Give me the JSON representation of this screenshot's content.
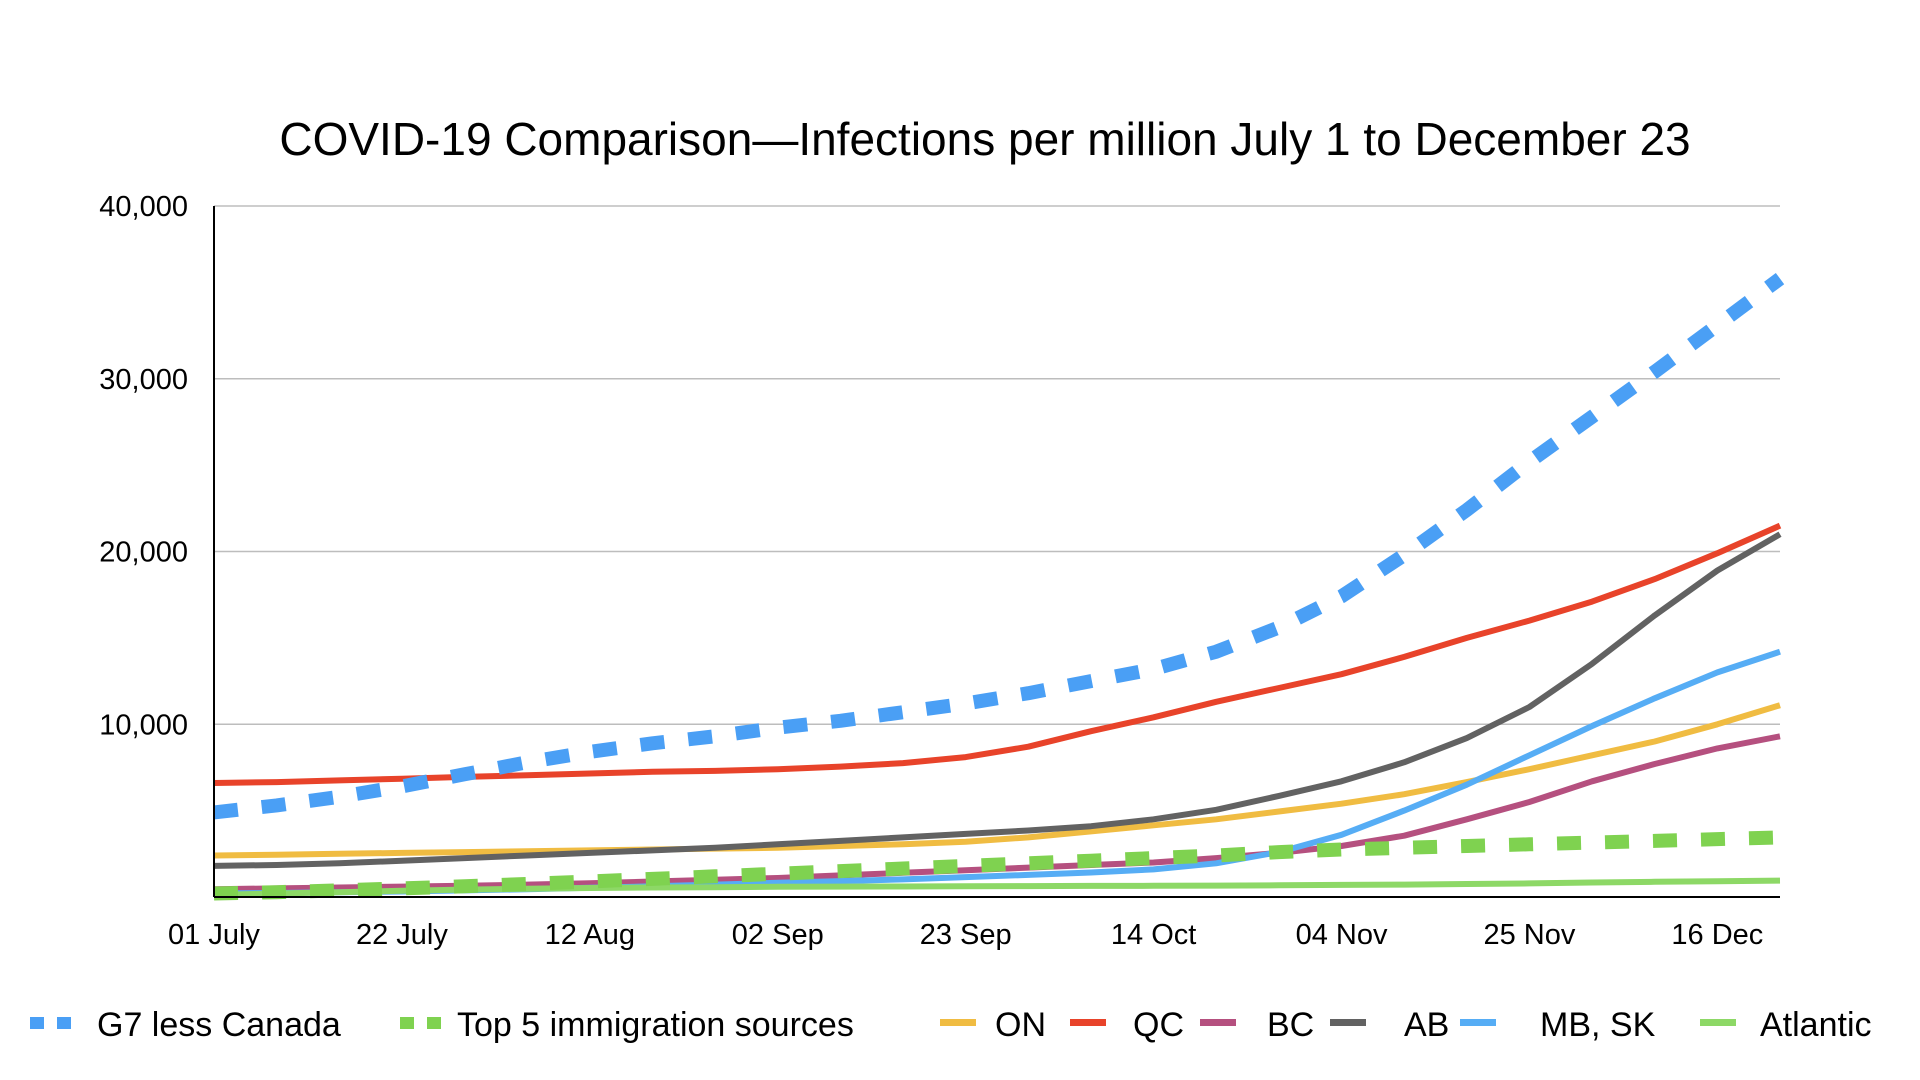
{
  "chart_data": {
    "type": "line",
    "title": "COVID-19 Comparison—Infections per million July 1 to December 23",
    "xlabel": "",
    "ylabel": "",
    "ylim": [
      0,
      40000
    ],
    "yticks": [
      0,
      10000,
      20000,
      30000,
      40000
    ],
    "ytick_labels": [
      "",
      "10,000",
      "20,000",
      "30,000",
      "40,000"
    ],
    "grid": true,
    "legend_position": "bottom",
    "x_start": "01 July",
    "x_end": "23 Dec",
    "x_step_days": 7,
    "xtick_labels": [
      "01 July",
      "22 July",
      "12 Aug",
      "02 Sep",
      "23 Sep",
      "14 Oct",
      "04 Nov",
      "25 Nov",
      "16 Dec"
    ],
    "xtick_index": [
      0,
      3,
      6,
      9,
      12,
      15,
      18,
      21,
      24
    ],
    "x": [
      "01 Jul",
      "08 Jul",
      "15 Jul",
      "22 Jul",
      "29 Jul",
      "05 Aug",
      "12 Aug",
      "19 Aug",
      "26 Aug",
      "02 Sep",
      "09 Sep",
      "16 Sep",
      "23 Sep",
      "30 Sep",
      "07 Oct",
      "14 Oct",
      "21 Oct",
      "28 Oct",
      "04 Nov",
      "11 Nov",
      "18 Nov",
      "25 Nov",
      "02 Dec",
      "09 Dec",
      "16 Dec",
      "23 Dec"
    ],
    "series": [
      {
        "name": "G7 less Canada",
        "color": "#4a9ff5",
        "dashed": true,
        "values": [
          4900,
          5300,
          5800,
          6400,
          7100,
          7800,
          8400,
          8900,
          9300,
          9800,
          10200,
          10700,
          11200,
          11800,
          12500,
          13200,
          14200,
          15600,
          17400,
          19800,
          22400,
          25200,
          27800,
          30400,
          33100,
          35800
        ]
      },
      {
        "name": "Top 5 immigration sources",
        "color": "#7fd250",
        "dashed": true,
        "values": [
          200,
          280,
          380,
          500,
          620,
          760,
          900,
          1050,
          1200,
          1350,
          1500,
          1650,
          1800,
          1950,
          2100,
          2250,
          2400,
          2600,
          2750,
          2850,
          2950,
          3050,
          3150,
          3250,
          3350,
          3450
        ]
      },
      {
        "name": "ON",
        "color": "#f0bc42",
        "values": [
          2400,
          2450,
          2500,
          2550,
          2600,
          2650,
          2700,
          2750,
          2800,
          2850,
          2950,
          3050,
          3200,
          3450,
          3800,
          4150,
          4500,
          4950,
          5400,
          5950,
          6650,
          7400,
          8200,
          9000,
          10000,
          11100
        ]
      },
      {
        "name": "QC",
        "color": "#e8432a",
        "values": [
          6600,
          6650,
          6750,
          6850,
          6950,
          7050,
          7150,
          7250,
          7300,
          7400,
          7550,
          7750,
          8100,
          8700,
          9600,
          10400,
          11300,
          12100,
          12900,
          13900,
          15000,
          16000,
          17100,
          18400,
          19900,
          21500
        ]
      },
      {
        "name": "BC",
        "color": "#b5507f",
        "values": [
          450,
          500,
          550,
          600,
          650,
          720,
          800,
          900,
          1000,
          1100,
          1250,
          1400,
          1550,
          1700,
          1850,
          2000,
          2250,
          2550,
          2950,
          3550,
          4500,
          5500,
          6700,
          7700,
          8600,
          9300
        ]
      },
      {
        "name": "AB",
        "color": "#626262",
        "values": [
          1800,
          1850,
          1950,
          2100,
          2250,
          2400,
          2550,
          2700,
          2850,
          3050,
          3250,
          3450,
          3650,
          3850,
          4100,
          4500,
          5050,
          5850,
          6700,
          7800,
          9200,
          11000,
          13500,
          16300,
          18900,
          21000
        ]
      },
      {
        "name": "MB, SK",
        "color": "#56adf5",
        "values": [
          200,
          230,
          270,
          320,
          380,
          450,
          530,
          620,
          720,
          820,
          920,
          1020,
          1150,
          1280,
          1420,
          1600,
          1950,
          2600,
          3600,
          5000,
          6500,
          8200,
          9900,
          11500,
          13000,
          14200
        ]
      },
      {
        "name": "Atlantic",
        "color": "#8dd866",
        "values": [
          120,
          200,
          280,
          360,
          430,
          480,
          520,
          550,
          570,
          590,
          600,
          610,
          620,
          630,
          640,
          650,
          660,
          680,
          700,
          720,
          750,
          790,
          840,
          880,
          910,
          950
        ]
      }
    ]
  }
}
